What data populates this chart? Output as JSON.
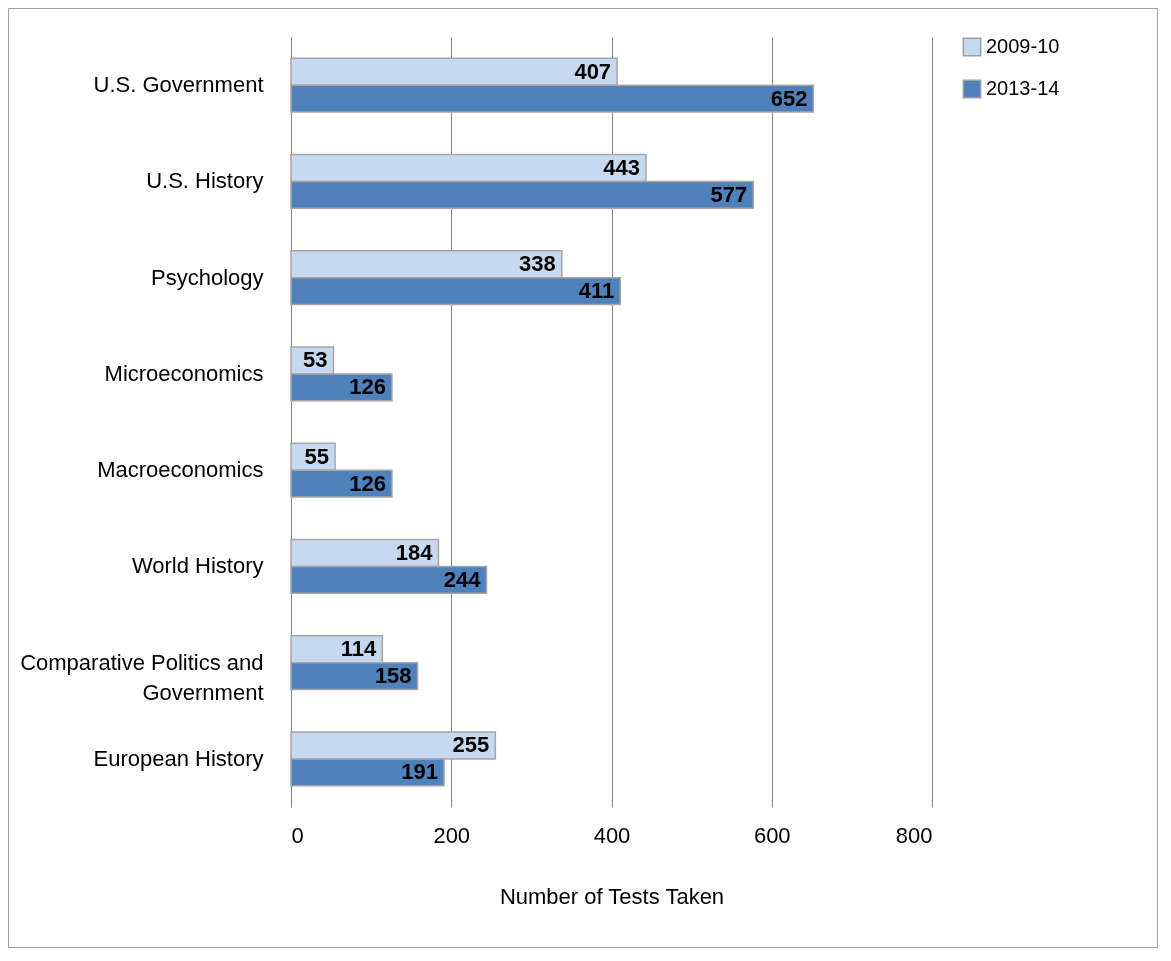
{
  "chart_data": {
    "type": "bar",
    "orientation": "horizontal",
    "xlabel": "Number of Tests Taken",
    "categories": [
      "U.S. Government",
      "U.S. History",
      "Psychology",
      "Microeconomics",
      "Macroeconomics",
      "World History",
      "Comparative Politics and Government",
      "European History"
    ],
    "series": [
      {
        "name": "2009-10",
        "color": "#c6d9f1",
        "values": [
          407,
          443,
          338,
          53,
          55,
          184,
          114,
          255
        ]
      },
      {
        "name": "2013-14",
        "color": "#4f81bd",
        "values": [
          652,
          577,
          411,
          126,
          126,
          244,
          158,
          191
        ]
      }
    ],
    "xlim": [
      0,
      800
    ],
    "xticks": [
      0,
      200,
      400,
      600,
      800
    ],
    "grid": "x",
    "legend": "right",
    "data_labels": true
  }
}
